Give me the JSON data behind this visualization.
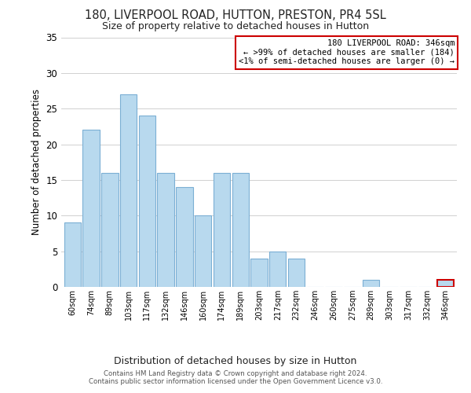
{
  "title": "180, LIVERPOOL ROAD, HUTTON, PRESTON, PR4 5SL",
  "subtitle": "Size of property relative to detached houses in Hutton",
  "xlabel": "Distribution of detached houses by size in Hutton",
  "ylabel": "Number of detached properties",
  "bar_labels": [
    "60sqm",
    "74sqm",
    "89sqm",
    "103sqm",
    "117sqm",
    "132sqm",
    "146sqm",
    "160sqm",
    "174sqm",
    "189sqm",
    "203sqm",
    "217sqm",
    "232sqm",
    "246sqm",
    "260sqm",
    "275sqm",
    "289sqm",
    "303sqm",
    "317sqm",
    "332sqm",
    "346sqm"
  ],
  "bar_values": [
    9,
    22,
    16,
    27,
    24,
    16,
    14,
    10,
    16,
    16,
    4,
    5,
    4,
    0,
    0,
    0,
    1,
    0,
    0,
    0,
    1
  ],
  "bar_color": "#b8d9ee",
  "bar_edge_color": "#7bafd4",
  "highlight_index": 20,
  "highlight_bar_edge_color": "#cc0000",
  "ylim": [
    0,
    35
  ],
  "yticks": [
    0,
    5,
    10,
    15,
    20,
    25,
    30,
    35
  ],
  "annotation_title": "180 LIVERPOOL ROAD: 346sqm",
  "annotation_line1": "← >99% of detached houses are smaller (184)",
  "annotation_line2": "<1% of semi-detached houses are larger (0) →",
  "annotation_box_color": "#ffffff",
  "annotation_border_color": "#cc0000",
  "footer_line1": "Contains HM Land Registry data © Crown copyright and database right 2024.",
  "footer_line2": "Contains public sector information licensed under the Open Government Licence v3.0.",
  "background_color": "#ffffff",
  "grid_color": "#d0d0d0"
}
